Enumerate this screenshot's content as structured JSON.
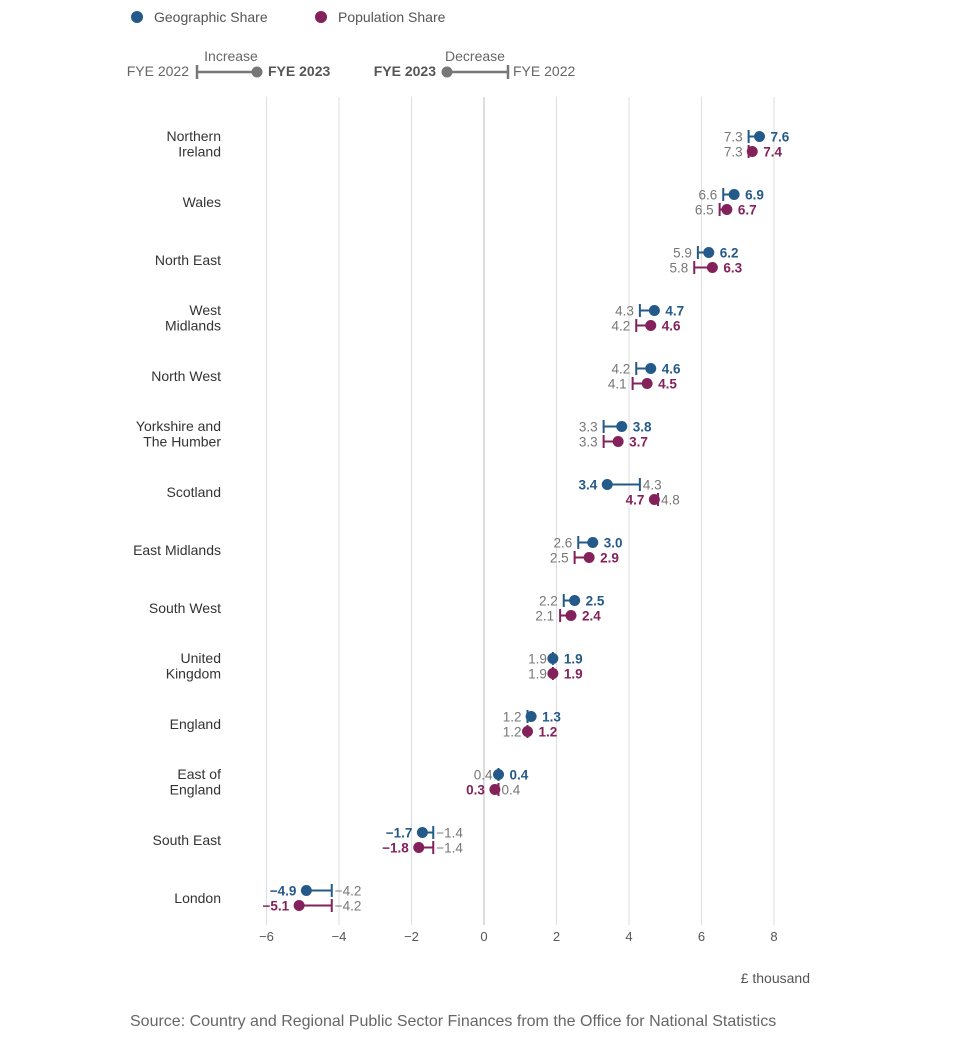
{
  "legend": {
    "geo": {
      "label": "Geographic Share",
      "color": "#245a8a"
    },
    "pop": {
      "label": "Population Share",
      "color": "#83225a"
    }
  },
  "key": {
    "increase": {
      "title": "Increase",
      "from": "FYE 2022",
      "to": "FYE 2023"
    },
    "decrease": {
      "title": "Decrease",
      "from": "FYE 2023",
      "to": "FYE 2022"
    },
    "color": "#777777"
  },
  "unit_label": "£ thousand",
  "source": "Source: Country and Regional Public Sector Finances from the Office for National Statistics",
  "chart_data": {
    "type": "dumbbell",
    "xlim": [
      -6.5,
      8.5
    ],
    "xticks": [
      -6,
      -4,
      -2,
      0,
      2,
      4,
      6,
      8
    ],
    "xtick_labels": [
      "−6",
      "−4",
      "−2",
      "0",
      "2",
      "4",
      "6",
      "8"
    ],
    "grid": true,
    "legend_position": "top-left",
    "series": [
      {
        "name": "Geographic Share",
        "key": "geo"
      },
      {
        "name": "Population Share",
        "key": "pop"
      }
    ],
    "regions": [
      {
        "label": [
          "Northern",
          "Ireland"
        ],
        "geo": {
          "fye2022": 7.3,
          "fye2023": 7.6,
          "label2022": "7.3",
          "label2023": "7.6"
        },
        "pop": {
          "fye2022": 7.3,
          "fye2023": 7.4,
          "label2022": "7.3",
          "label2023": "7.4"
        }
      },
      {
        "label": [
          "Wales"
        ],
        "geo": {
          "fye2022": 6.6,
          "fye2023": 6.9,
          "label2022": "6.6",
          "label2023": "6.9"
        },
        "pop": {
          "fye2022": 6.5,
          "fye2023": 6.7,
          "label2022": "6.5",
          "label2023": "6.7"
        }
      },
      {
        "label": [
          "North East"
        ],
        "geo": {
          "fye2022": 5.9,
          "fye2023": 6.2,
          "label2022": "5.9",
          "label2023": "6.2"
        },
        "pop": {
          "fye2022": 5.8,
          "fye2023": 6.3,
          "label2022": "5.8",
          "label2023": "6.3"
        }
      },
      {
        "label": [
          "West",
          "Midlands"
        ],
        "geo": {
          "fye2022": 4.3,
          "fye2023": 4.7,
          "label2022": "4.3",
          "label2023": "4.7"
        },
        "pop": {
          "fye2022": 4.2,
          "fye2023": 4.6,
          "label2022": "4.2",
          "label2023": "4.6"
        }
      },
      {
        "label": [
          "North West"
        ],
        "geo": {
          "fye2022": 4.2,
          "fye2023": 4.6,
          "label2022": "4.2",
          "label2023": "4.6"
        },
        "pop": {
          "fye2022": 4.1,
          "fye2023": 4.5,
          "label2022": "4.1",
          "label2023": "4.5"
        }
      },
      {
        "label": [
          "Yorkshire and",
          "The Humber"
        ],
        "geo": {
          "fye2022": 3.3,
          "fye2023": 3.8,
          "label2022": "3.3",
          "label2023": "3.8"
        },
        "pop": {
          "fye2022": 3.3,
          "fye2023": 3.7,
          "label2022": "3.3",
          "label2023": "3.7"
        }
      },
      {
        "label": [
          "Scotland"
        ],
        "geo": {
          "fye2022": 4.3,
          "fye2023": 3.4,
          "label2022": "4.3",
          "label2023": "3.4"
        },
        "pop": {
          "fye2022": 4.8,
          "fye2023": 4.7,
          "label2022": "4.8",
          "label2023": "4.7"
        }
      },
      {
        "label": [
          "East Midlands"
        ],
        "geo": {
          "fye2022": 2.6,
          "fye2023": 3.0,
          "label2022": "2.6",
          "label2023": "3.0"
        },
        "pop": {
          "fye2022": 2.5,
          "fye2023": 2.9,
          "label2022": "2.5",
          "label2023": "2.9"
        }
      },
      {
        "label": [
          "South West"
        ],
        "geo": {
          "fye2022": 2.2,
          "fye2023": 2.5,
          "label2022": "2.2",
          "label2023": "2.5"
        },
        "pop": {
          "fye2022": 2.1,
          "fye2023": 2.4,
          "label2022": "2.1",
          "label2023": "2.4"
        }
      },
      {
        "label": [
          "United",
          "Kingdom"
        ],
        "geo": {
          "fye2022": 1.9,
          "fye2023": 1.9,
          "label2022": "1.9",
          "label2023": "1.9"
        },
        "pop": {
          "fye2022": 1.9,
          "fye2023": 1.9,
          "label2022": "1.9",
          "label2023": "1.9"
        }
      },
      {
        "label": [
          "England"
        ],
        "geo": {
          "fye2022": 1.2,
          "fye2023": 1.3,
          "label2022": "1.2",
          "label2023": "1.3"
        },
        "pop": {
          "fye2022": 1.2,
          "fye2023": 1.2,
          "label2022": "1.2",
          "label2023": "1.2"
        }
      },
      {
        "label": [
          "East of",
          "England"
        ],
        "geo": {
          "fye2022": 0.4,
          "fye2023": 0.4,
          "label2022": "0.4",
          "label2023": "0.4"
        },
        "pop": {
          "fye2022": 0.4,
          "fye2023": 0.3,
          "label2022": "0.4",
          "label2023": "0.3"
        }
      },
      {
        "label": [
          "South East"
        ],
        "geo": {
          "fye2022": -1.4,
          "fye2023": -1.7,
          "label2022": "−1.4",
          "label2023": "−1.7"
        },
        "pop": {
          "fye2022": -1.4,
          "fye2023": -1.8,
          "label2022": "−1.4",
          "label2023": "−1.8"
        }
      },
      {
        "label": [
          "London"
        ],
        "geo": {
          "fye2022": -4.2,
          "fye2023": -4.9,
          "label2022": "−4.2",
          "label2023": "−4.9"
        },
        "pop": {
          "fye2022": -4.2,
          "fye2023": -5.1,
          "label2022": "−4.2",
          "label2023": "−5.1"
        }
      }
    ]
  }
}
